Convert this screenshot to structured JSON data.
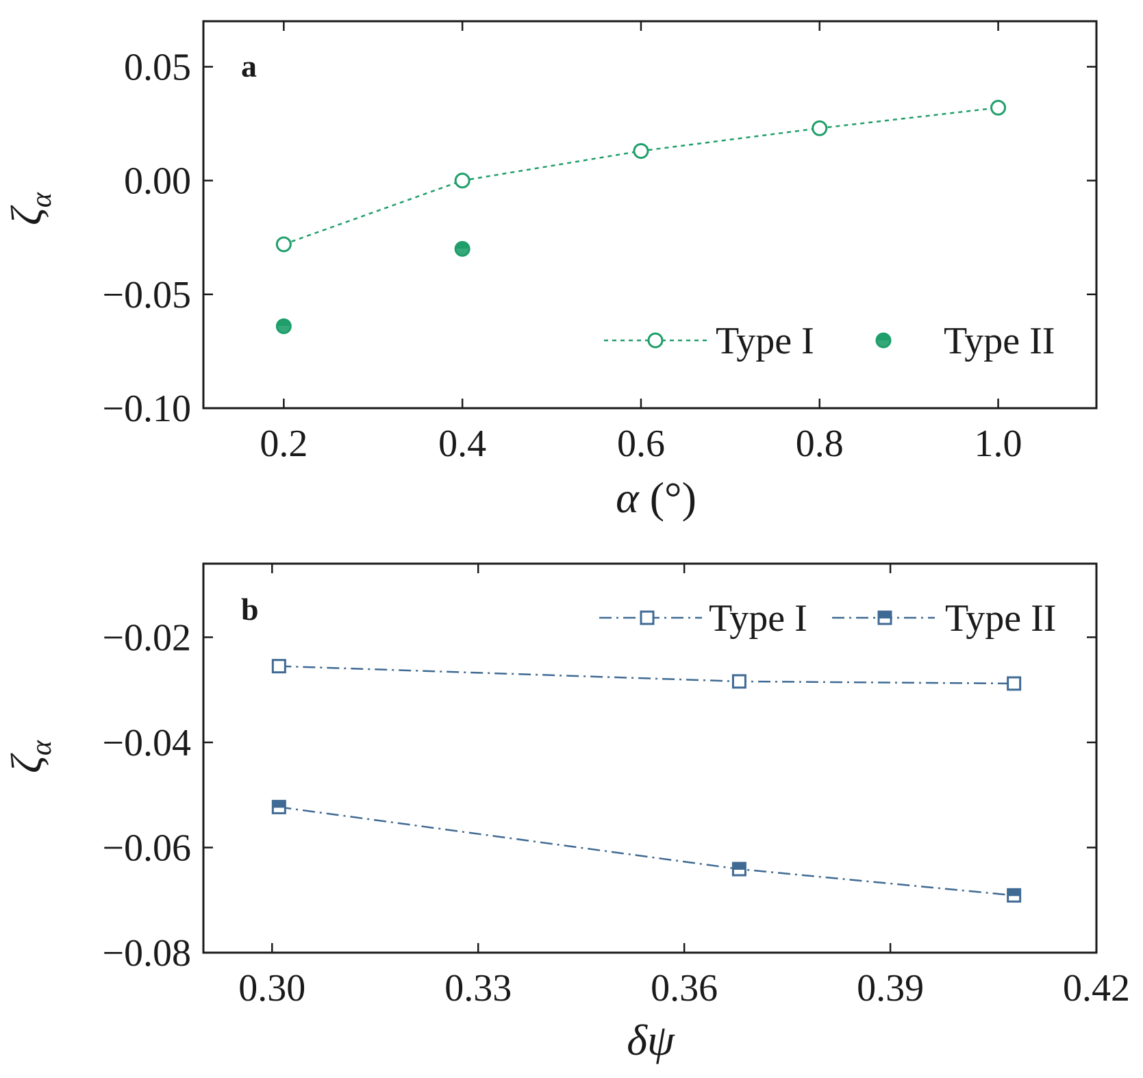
{
  "colors": {
    "green": "#1e9e6a",
    "blue": "#3f6a93",
    "axis": "#1a1a1a"
  },
  "chart_data": [
    {
      "panel": "a",
      "type": "scatter",
      "xlabel_symbol": "α",
      "xlabel_unit": "(°)",
      "ylabel_symbol": "ζ",
      "ylabel_sub": "α",
      "xlim": [
        0.11,
        1.11
      ],
      "ylim": [
        -0.1,
        0.07
      ],
      "xticks": [
        0.2,
        0.4,
        0.6,
        0.8,
        1.0
      ],
      "xtick_labels": [
        "0.2",
        "0.4",
        "0.6",
        "0.8",
        "1.0"
      ],
      "yticks": [
        0.05,
        0.0,
        -0.05,
        -0.1
      ],
      "ytick_labels": [
        "0.05",
        "0.00",
        "−0.05",
        "−0.10"
      ],
      "legend_position": "bottom-right",
      "series": [
        {
          "name": "Type I",
          "marker": "open-circle",
          "line": "dashed",
          "x": [
            0.2,
            0.4,
            0.6,
            0.8,
            1.0
          ],
          "y": [
            -0.028,
            0.0,
            0.013,
            0.023,
            0.032
          ]
        },
        {
          "name": "Type II",
          "marker": "half-filled-circle",
          "line": "none",
          "x": [
            0.2,
            0.4
          ],
          "y": [
            -0.064,
            -0.03
          ]
        }
      ]
    },
    {
      "panel": "b",
      "type": "line",
      "xlabel_symbol": "δψ",
      "ylabel_symbol": "ζ",
      "ylabel_sub": "α",
      "xlim": [
        0.29,
        0.42
      ],
      "ylim": [
        -0.08,
        -0.006
      ],
      "xticks": [
        0.3,
        0.33,
        0.36,
        0.39,
        0.42
      ],
      "xtick_labels": [
        "0.30",
        "0.33",
        "0.36",
        "0.39",
        "0.42"
      ],
      "yticks": [
        -0.02,
        -0.04,
        -0.06,
        -0.08
      ],
      "ytick_labels": [
        "−0.02",
        "−0.04",
        "−0.06",
        "−0.08"
      ],
      "legend_position": "top-right",
      "series": [
        {
          "name": "Type I",
          "marker": "open-square",
          "line": "dashdot",
          "x": [
            0.301,
            0.368,
            0.408
          ],
          "y": [
            -0.0255,
            -0.0284,
            -0.0288
          ]
        },
        {
          "name": "Type II",
          "marker": "half-filled-square",
          "line": "dashdot",
          "x": [
            0.301,
            0.368,
            0.408
          ],
          "y": [
            -0.0523,
            -0.0641,
            -0.0691
          ]
        }
      ]
    }
  ]
}
